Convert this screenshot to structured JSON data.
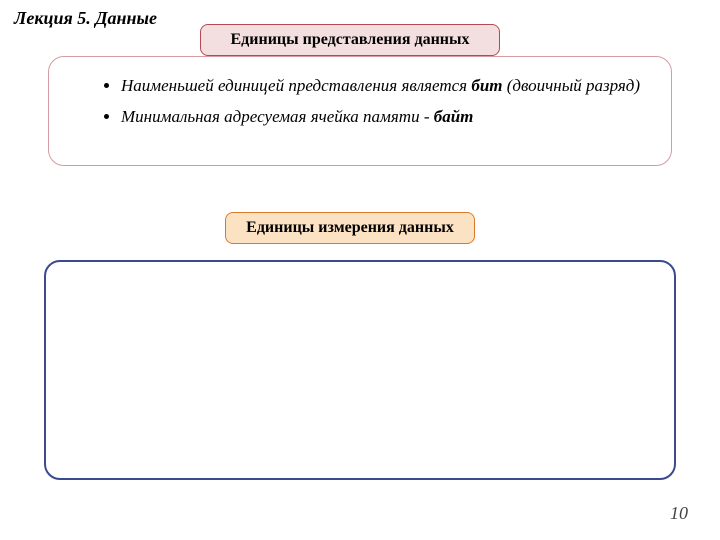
{
  "lecture_title": "Лекция 5. Данные",
  "page_number": "10",
  "heading1": {
    "text": "Единицы представления данных",
    "bg_color": "#f3dee0",
    "border_color": "#b54a57",
    "text_color": "#000000"
  },
  "heading2": {
    "text": "Единицы измерения данных",
    "bg_color": "#fbe2c3",
    "border_color": "#d97a2a",
    "text_color": "#000000"
  },
  "box1": {
    "border_color": "#d79aa0",
    "border_width": "1px",
    "bullets": {
      "b1_pre": "Наименьшей единицей  представления является ",
      "b1_bold": "бит",
      "b1_post": " (двоичный разряд)",
      "b2_pre": "Минимальная адресуемая ячейка памяти -  ",
      "b2_bold": "байт"
    }
  },
  "box2": {
    "border_color": "#3b4a8f",
    "border_width": "2px"
  }
}
